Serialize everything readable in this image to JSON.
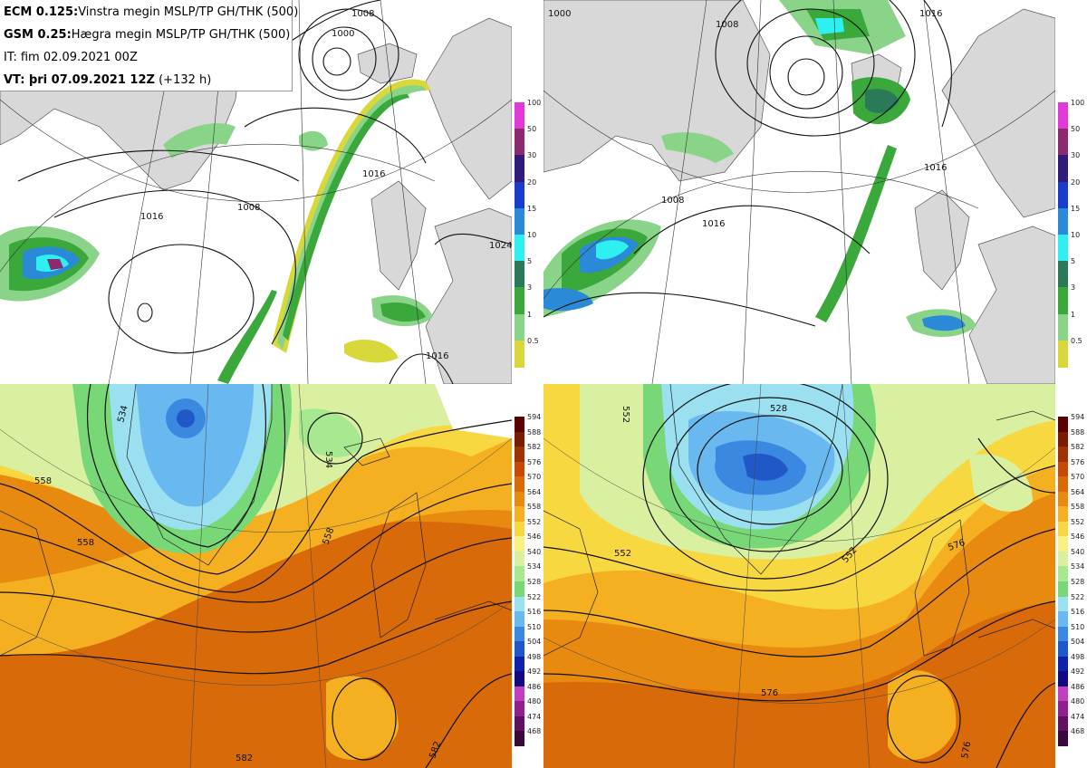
{
  "header": {
    "line1_key": "ECM 0.125:",
    "line1_text": "Vinstra megin MSLP/TP GH/THK (500)",
    "line2_key": "GSM 0.25:",
    "line2_text": "Hægra megin MSLP/TP GH/THK (500)",
    "line3_text": "IT: fim 02.09.2021 00Z",
    "line4_key": "VT: ",
    "line4_text": "þri 07.09.2021 12Z",
    "line4_suffix": "(+132 h)"
  },
  "precip_legend": {
    "labels": [
      "100",
      "50",
      "30",
      "20",
      "15",
      "10",
      "5",
      "3",
      "1",
      "0.5"
    ],
    "colors": [
      "#e23ad8",
      "#8c2a6e",
      "#311a7a",
      "#1a3ccc",
      "#2a8ad8",
      "#2ef0f0",
      "#2a7a5a",
      "#3aa83a",
      "#8ad48a",
      "#d8d83a"
    ]
  },
  "thk_legend": {
    "labels": [
      "594",
      "588",
      "582",
      "576",
      "570",
      "564",
      "558",
      "552",
      "546",
      "540",
      "534",
      "528",
      "522",
      "516",
      "510",
      "504",
      "498",
      "492",
      "486",
      "480",
      "474",
      "468"
    ],
    "colors": [
      "#5a0000",
      "#7a1a00",
      "#9e3200",
      "#c44a06",
      "#d86a0a",
      "#e88a10",
      "#f4b020",
      "#f8d840",
      "#f8f080",
      "#d8f0a0",
      "#a8e890",
      "#78d878",
      "#9ae0f0",
      "#6ab8f0",
      "#3a88e0",
      "#2058c8",
      "#1020a8",
      "#120880",
      "#c040c0",
      "#902090",
      "#601060",
      "#3a083a"
    ]
  },
  "map_labels": {
    "ecm_mslp": [
      "1008",
      "1000",
      "1016",
      "1008",
      "1016",
      "1024",
      "1016"
    ],
    "ecm_thk": [
      "534",
      "558",
      "558",
      "534",
      "558",
      "582",
      "582"
    ],
    "gsm_mslp": [
      "1000",
      "1008",
      "1008",
      "1016",
      "1016",
      "1016"
    ],
    "gsm_thk": [
      "552",
      "528",
      "552",
      "552",
      "576",
      "576",
      "576"
    ]
  },
  "colors": {
    "land": "#d8d8d8",
    "coast": "#555555",
    "contour": "#111111"
  }
}
